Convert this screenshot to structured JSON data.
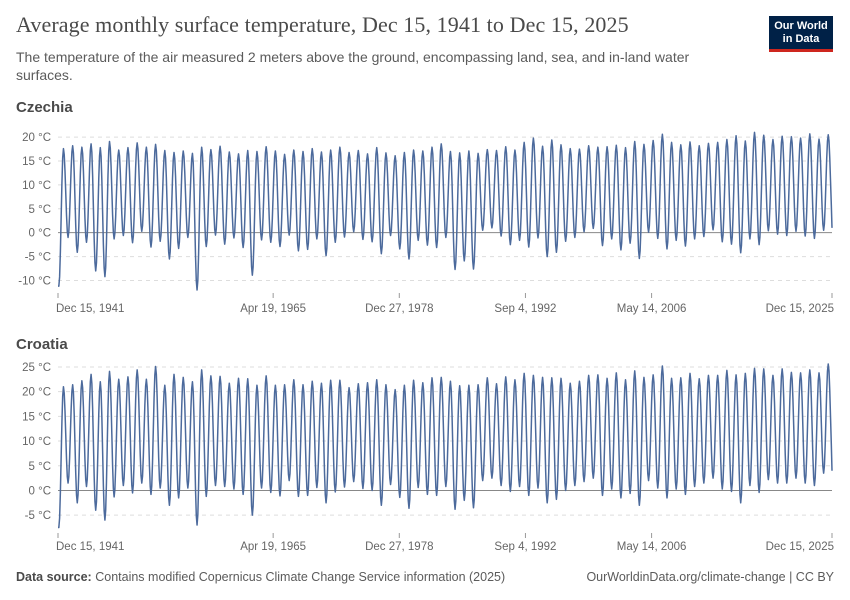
{
  "header": {
    "title": "Average monthly surface temperature, Dec 15, 1941 to Dec 15, 2025",
    "subtitle": "The temperature of the air measured 2 meters above the ground, encompassing land, sea, and in-land water surfaces."
  },
  "logo": {
    "line1": "Our World",
    "line2": "in Data",
    "bg_color": "#002147",
    "accent_color": "#ce261e"
  },
  "footer": {
    "source_label": "Data source:",
    "source_text": "Contains modified Copernicus Climate Change Service information (2025)",
    "right_text": "OurWorldinData.org/climate-change | CC BY"
  },
  "chart_data": [
    {
      "type": "line",
      "title": "Czechia",
      "unit": "°C",
      "x_range": [
        1941.95,
        2025.95
      ],
      "ylim": [
        -12,
        21.5
      ],
      "y_ticks": [
        -10,
        -5,
        0,
        5,
        10,
        15,
        20
      ],
      "y_tick_labels": [
        "-10 °C",
        "-5 °C",
        "0 °C",
        "5 °C",
        "10 °C",
        "15 °C",
        "20 °C"
      ],
      "x_ticks": [
        1941.95,
        1965.3,
        1978.99,
        1992.68,
        2006.37,
        2025.95
      ],
      "x_tick_labels": [
        "Dec 15, 1941",
        "Apr 19, 1965",
        "Dec 27, 1978",
        "Sep 4, 1992",
        "May 14, 2006",
        "Dec 15, 2025"
      ],
      "start_year": 1942,
      "annual_summer_peaks": [
        17.6,
        18.2,
        17.9,
        18.6,
        17.8,
        19.1,
        17.3,
        17.8,
        18.8,
        17.9,
        18.5,
        17.2,
        16.8,
        17.1,
        16.6,
        17.9,
        17.4,
        18.1,
        16.9,
        16.5,
        17.2,
        17.0,
        18.0,
        17.1,
        16.4,
        17.3,
        17.0,
        17.6,
        16.9,
        17.3,
        17.9,
        16.8,
        17.2,
        16.5,
        17.8,
        16.7,
        16.1,
        16.8,
        17.3,
        17.1,
        17.9,
        18.6,
        17.0,
        16.7,
        17.1,
        16.6,
        17.4,
        17.2,
        18.0,
        17.3,
        18.9,
        19.8,
        18.1,
        19.4,
        18.4,
        17.6,
        17.5,
        18.2,
        17.9,
        18.0,
        18.3,
        17.8,
        19.1,
        18.5,
        19.3,
        20.6,
        18.9,
        18.4,
        19.0,
        18.2,
        18.7,
        18.9,
        19.5,
        20.3,
        19.2,
        21.0,
        20.4,
        19.5,
        20.2,
        20.1,
        19.8,
        20.7,
        19.6,
        20.5
      ],
      "annual_winter_lows": [
        -11.2,
        -1.0,
        -4.1,
        -2.0,
        -8.0,
        -9.2,
        -1.3,
        -0.6,
        -2.1,
        0.3,
        -3.0,
        -1.8,
        -5.5,
        -3.3,
        -1.0,
        -12.0,
        -2.9,
        -0.5,
        -2.4,
        -1.1,
        -3.1,
        -8.9,
        -1.5,
        -2.0,
        -2.9,
        -0.5,
        -3.8,
        -3.5,
        -1.3,
        -4.8,
        -2.0,
        -0.9,
        0.2,
        -1.4,
        -1.9,
        -4.4,
        -0.6,
        -3.4,
        -5.5,
        -1.6,
        -2.6,
        -3.1,
        -1.0,
        -7.7,
        -5.9,
        -7.6,
        0.5,
        1.0,
        -0.7,
        -2.5,
        -1.6,
        -3.0,
        -1.1,
        -5.0,
        -4.1,
        -1.8,
        -1.0,
        0.2,
        0.9,
        -2.7,
        -1.3,
        -3.6,
        -2.2,
        -5.4,
        0.1,
        -1.2,
        -3.4,
        -1.6,
        -2.8,
        -1.3,
        -0.8,
        0.6,
        -1.9,
        -2.4,
        -4.2,
        -1.3,
        -2.5,
        0.4,
        -0.3,
        -0.6,
        0.3,
        -0.7,
        -1.2,
        0.5
      ],
      "final_value": 1.0
    },
    {
      "type": "line",
      "title": "Croatia",
      "unit": "°C",
      "x_range": [
        1941.95,
        2025.95
      ],
      "ylim": [
        -8,
        26
      ],
      "y_ticks": [
        -5,
        0,
        5,
        10,
        15,
        20,
        25
      ],
      "y_tick_labels": [
        "-5 °C",
        "0 °C",
        "5 °C",
        "10 °C",
        "15 °C",
        "20 °C",
        "25 °C"
      ],
      "x_ticks": [
        1941.95,
        1965.3,
        1978.99,
        1992.68,
        2006.37,
        2025.95
      ],
      "x_tick_labels": [
        "Dec 15, 1941",
        "Apr 19, 1965",
        "Dec 27, 1978",
        "Sep 4, 1992",
        "May 14, 2006",
        "Dec 15, 2025"
      ],
      "start_year": 1942,
      "annual_summer_peaks": [
        21.0,
        21.4,
        22.2,
        23.5,
        22.0,
        24.1,
        22.5,
        23.0,
        24.4,
        22.5,
        25.1,
        21.3,
        23.5,
        22.9,
        22.0,
        24.4,
        23.2,
        23.1,
        21.7,
        22.7,
        22.6,
        21.3,
        23.2,
        21.3,
        21.4,
        22.4,
        21.4,
        22.1,
        21.7,
        22.3,
        22.3,
        20.8,
        21.6,
        21.8,
        22.4,
        21.4,
        20.4,
        21.3,
        22.3,
        21.8,
        22.8,
        22.9,
        22.1,
        21.2,
        21.3,
        21.4,
        22.8,
        21.6,
        23.0,
        22.4,
        23.7,
        23.3,
        22.9,
        22.8,
        22.7,
        21.7,
        22.1,
        23.3,
        23.4,
        22.7,
        23.8,
        22.4,
        24.2,
        22.9,
        23.4,
        25.2,
        22.7,
        22.8,
        23.7,
        22.6,
        23.3,
        23.3,
        24.3,
        23.4,
        23.7,
        24.7,
        24.6,
        23.3,
        24.6,
        23.9,
        23.8,
        24.4,
        23.8,
        25.6
      ],
      "annual_winter_lows": [
        -7.5,
        1.5,
        -2.5,
        0.8,
        -4.0,
        -6.0,
        -1.3,
        1.0,
        -0.5,
        1.5,
        -0.8,
        0.5,
        -3.0,
        -1.5,
        0.5,
        -7.0,
        -1.2,
        1.0,
        0.8,
        0.3,
        -0.8,
        -5.0,
        0.5,
        -0.4,
        -1.1,
        2.0,
        -1.2,
        -1.0,
        0.6,
        -2.5,
        -0.3,
        0.7,
        1.8,
        0.4,
        0.0,
        -3.0,
        1.2,
        -1.4,
        -3.6,
        0.6,
        -0.8,
        -1.0,
        0.8,
        -3.8,
        -2.0,
        -3.5,
        2.0,
        2.5,
        1.0,
        -0.2,
        0.8,
        -1.0,
        0.5,
        -2.5,
        -1.8,
        0.0,
        1.0,
        1.8,
        2.5,
        -1.0,
        0.3,
        -1.5,
        -0.6,
        -3.0,
        2.0,
        0.5,
        -1.5,
        0.3,
        -0.8,
        0.8,
        1.5,
        2.5,
        0.3,
        -0.2,
        -2.5,
        1.0,
        -0.4,
        2.2,
        1.5,
        1.5,
        2.5,
        1.5,
        1.0,
        3.5
      ],
      "final_value": 4.0
    }
  ]
}
